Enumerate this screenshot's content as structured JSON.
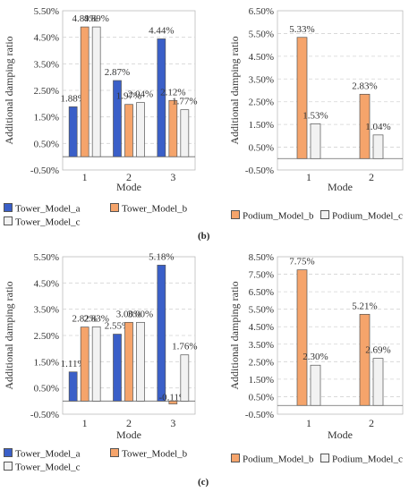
{
  "colors": {
    "Tower_Model_a": "#3a5fc8",
    "Tower_Model_b": "#f5a46b",
    "Tower_Model_c": "#f2f2f2",
    "Podium_Model_b": "#f5a46b",
    "Podium_Model_c": "#f2f2f2"
  },
  "panels": [
    {
      "label": "(b)"
    },
    {
      "label": "(c)"
    }
  ],
  "legends": {
    "tower": [
      "Tower_Model_a",
      "Tower_Model_b",
      "Tower_Model_c"
    ],
    "podium": [
      "Podium_Model_b",
      "Podium_Model_c"
    ]
  },
  "chart_data": [
    {
      "id": "b-tower",
      "type": "bar",
      "xlabel": "Mode",
      "ylabel": "Additional damping ratio",
      "categories": [
        "1",
        "2",
        "3"
      ],
      "yticks": [
        "-0.50%",
        "0.50%",
        "1.50%",
        "2.50%",
        "3.50%",
        "4.50%",
        "5.50%"
      ],
      "ylim": [
        -0.5,
        5.5
      ],
      "series": [
        {
          "name": "Tower_Model_a",
          "values": [
            1.88,
            2.87,
            4.44
          ],
          "labels": [
            "1.88%",
            "2.87%",
            "4.44%"
          ]
        },
        {
          "name": "Tower_Model_b",
          "values": [
            4.89,
            1.97,
            2.12
          ],
          "labels": [
            "4.89%",
            "1.97%",
            "2.12%"
          ]
        },
        {
          "name": "Tower_Model_c",
          "values": [
            4.89,
            2.04,
            1.77
          ],
          "labels": [
            "4.89%",
            "2.04%",
            "1.77%"
          ]
        }
      ]
    },
    {
      "id": "b-podium",
      "type": "bar",
      "xlabel": "Mode",
      "ylabel": "Additional damping ratio",
      "categories": [
        "1",
        "2"
      ],
      "yticks": [
        "-0.50%",
        "0.50%",
        "1.50%",
        "2.50%",
        "3.50%",
        "4.50%",
        "5.50%",
        "6.50%"
      ],
      "ylim": [
        -0.5,
        6.5
      ],
      "series": [
        {
          "name": "Podium_Model_b",
          "values": [
            5.33,
            2.83
          ],
          "labels": [
            "5.33%",
            "2.83%"
          ]
        },
        {
          "name": "Podium_Model_c",
          "values": [
            1.53,
            1.04
          ],
          "labels": [
            "1.53%",
            "1.04%"
          ]
        }
      ]
    },
    {
      "id": "c-tower",
      "type": "bar",
      "xlabel": "Mode",
      "ylabel": "Additional damping ratio",
      "categories": [
        "1",
        "2",
        "3"
      ],
      "yticks": [
        "-0.50%",
        "0.50%",
        "1.50%",
        "2.50%",
        "3.50%",
        "4.50%",
        "5.50%"
      ],
      "ylim": [
        -0.5,
        5.5
      ],
      "series": [
        {
          "name": "Tower_Model_a",
          "values": [
            1.11,
            2.55,
            5.18
          ],
          "labels": [
            "1.11%",
            "2.55%",
            "5.18%"
          ]
        },
        {
          "name": "Tower_Model_b",
          "values": [
            2.82,
            3.0,
            -0.11
          ],
          "labels": [
            "2.82%",
            "3.00%",
            "-0.11%"
          ]
        },
        {
          "name": "Tower_Model_c",
          "values": [
            2.83,
            3.0,
            1.76
          ],
          "labels": [
            "2.83%",
            "3.00%",
            "1.76%"
          ]
        }
      ]
    },
    {
      "id": "c-podium",
      "type": "bar",
      "xlabel": "Mode",
      "ylabel": "Additional damping ratio",
      "categories": [
        "1",
        "2"
      ],
      "yticks": [
        "-0.50%",
        "0.50%",
        "1.50%",
        "2.50%",
        "3.50%",
        "4.50%",
        "5.50%",
        "6.50%",
        "7.50%",
        "8.50%"
      ],
      "ylim": [
        -0.5,
        8.5
      ],
      "series": [
        {
          "name": "Podium_Model_b",
          "values": [
            7.75,
            5.21
          ],
          "labels": [
            "7.75%",
            "5.21%"
          ]
        },
        {
          "name": "Podium_Model_c",
          "values": [
            2.3,
            2.69
          ],
          "labels": [
            "2.30%",
            "2.69%"
          ]
        }
      ]
    }
  ]
}
